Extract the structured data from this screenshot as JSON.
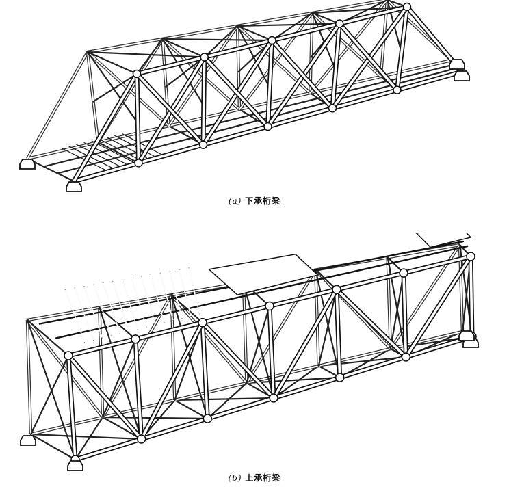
{
  "figure_a": {
    "caption_label": "(a)",
    "caption_text": "下承桁梁"
  },
  "figure_b": {
    "caption_label": "(b)",
    "caption_text": "上承桁梁"
  }
}
